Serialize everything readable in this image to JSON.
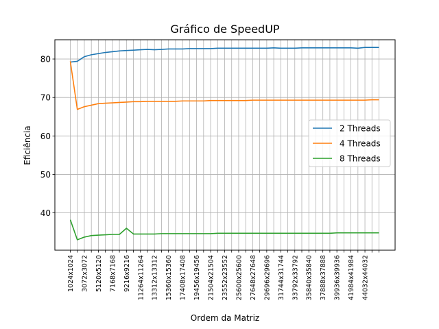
{
  "chart_data": {
    "type": "line",
    "title": "Gráfico de SpeedUP",
    "xlabel": "Ordem da Matriz",
    "ylabel": "Eficiência",
    "ylim": [
      30.3,
      85.0
    ],
    "yticks": [
      40,
      50,
      60,
      70,
      80
    ],
    "grid": true,
    "legend_position": "center-right",
    "x_tick_labels": [
      "1024x1024",
      "3072x3072",
      "5120x5120",
      "7168x7168",
      "9216x9216",
      "11264x11264",
      "13312x13312",
      "15360x15360",
      "17408x17408",
      "19456x19456",
      "21504x21504",
      "23552x23552",
      "25600x25600",
      "27648x27648",
      "29696x29696",
      "31744x31744",
      "33792x33792",
      "35840x35840",
      "37888x37888",
      "39936x39936",
      "41984x41984",
      "44032x44032"
    ],
    "series": [
      {
        "name": "2 Threads",
        "color": "#1f77b4",
        "values": [
          79.2,
          79.4,
          80.6,
          81.1,
          81.4,
          81.7,
          81.9,
          82.1,
          82.2,
          82.3,
          82.4,
          82.5,
          82.4,
          82.5,
          82.6,
          82.6,
          82.6,
          82.7,
          82.7,
          82.7,
          82.7,
          82.8,
          82.8,
          82.8,
          82.8,
          82.8,
          82.8,
          82.8,
          82.8,
          82.9,
          82.8,
          82.8,
          82.8,
          82.9,
          82.9,
          82.9,
          82.9,
          82.9,
          82.9,
          82.9,
          82.9,
          82.8,
          83.0,
          83.0,
          83.0
        ]
      },
      {
        "name": "4 Threads",
        "color": "#ff7f0e",
        "values": [
          79.4,
          66.9,
          67.6,
          68.0,
          68.4,
          68.5,
          68.6,
          68.7,
          68.8,
          68.9,
          68.9,
          69.0,
          69.0,
          69.0,
          69.0,
          69.0,
          69.1,
          69.1,
          69.1,
          69.1,
          69.2,
          69.2,
          69.2,
          69.2,
          69.2,
          69.2,
          69.3,
          69.3,
          69.3,
          69.3,
          69.3,
          69.3,
          69.3,
          69.3,
          69.3,
          69.3,
          69.3,
          69.3,
          69.3,
          69.3,
          69.3,
          69.3,
          69.3,
          69.4,
          69.4
        ]
      },
      {
        "name": "8 Threads",
        "color": "#2ca02c",
        "values": [
          38.2,
          33.0,
          33.7,
          34.1,
          34.2,
          34.3,
          34.4,
          34.4,
          36.0,
          34.5,
          34.5,
          34.5,
          34.5,
          34.6,
          34.6,
          34.6,
          34.6,
          34.6,
          34.6,
          34.6,
          34.6,
          34.7,
          34.7,
          34.7,
          34.7,
          34.7,
          34.7,
          34.7,
          34.7,
          34.7,
          34.7,
          34.7,
          34.7,
          34.7,
          34.7,
          34.7,
          34.7,
          34.7,
          34.8,
          34.8,
          34.8,
          34.8,
          34.8,
          34.8,
          34.8
        ]
      }
    ]
  }
}
